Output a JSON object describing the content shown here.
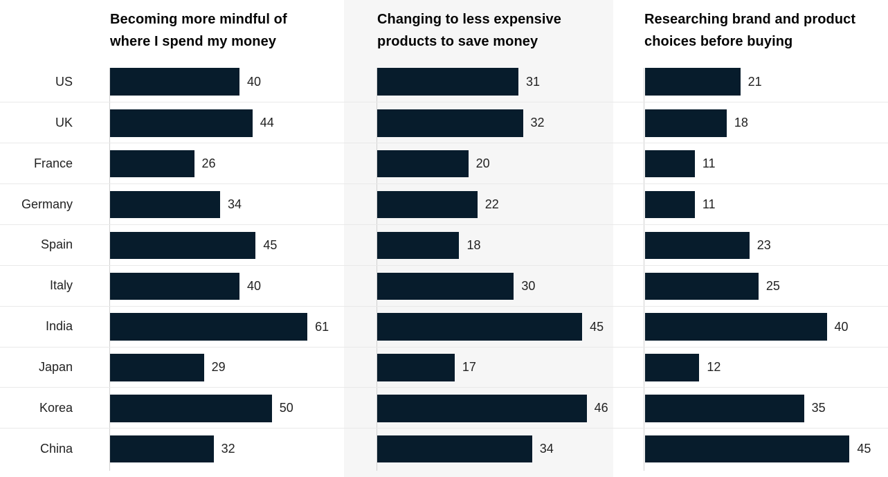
{
  "chart_data": {
    "type": "bar",
    "orientation": "horizontal",
    "title": "",
    "categories": [
      "US",
      "UK",
      "France",
      "Germany",
      "Spain",
      "Italy",
      "India",
      "Japan",
      "Korea",
      "China"
    ],
    "series": [
      {
        "name": "Becoming more mindful of where I spend my money",
        "values": [
          40,
          44,
          26,
          34,
          45,
          40,
          61,
          29,
          50,
          32
        ]
      },
      {
        "name": "Changing to less expensive products to save money",
        "values": [
          31,
          32,
          20,
          22,
          18,
          30,
          45,
          17,
          46,
          34
        ]
      },
      {
        "name": "Researching brand and product choices before buying",
        "values": [
          21,
          18,
          11,
          11,
          23,
          25,
          40,
          12,
          35,
          45
        ]
      }
    ],
    "value_labels_shown": true,
    "grid": "horizontal-row-separators",
    "legend_position": "none",
    "xlim_per_panel": [
      [
        0,
        61
      ],
      [
        0,
        46
      ],
      [
        0,
        45
      ]
    ]
  },
  "panels": [
    {
      "title_lines": [
        "Becoming more mindful of",
        "where I spend my money"
      ],
      "highlighted_background": false
    },
    {
      "title_lines": [
        "Changing to less expensive",
        "products to save money"
      ],
      "highlighted_background": true
    },
    {
      "title_lines": [
        "Researching brand and product",
        "choices before buying"
      ],
      "highlighted_background": false
    }
  ],
  "colors": {
    "bar": "#071c2c",
    "middle_panel_background": "#f6f6f6",
    "row_separator": "#e9e9e9",
    "axis_line": "#d1d1d1",
    "title_text": "#050505",
    "label_text": "#222222"
  }
}
